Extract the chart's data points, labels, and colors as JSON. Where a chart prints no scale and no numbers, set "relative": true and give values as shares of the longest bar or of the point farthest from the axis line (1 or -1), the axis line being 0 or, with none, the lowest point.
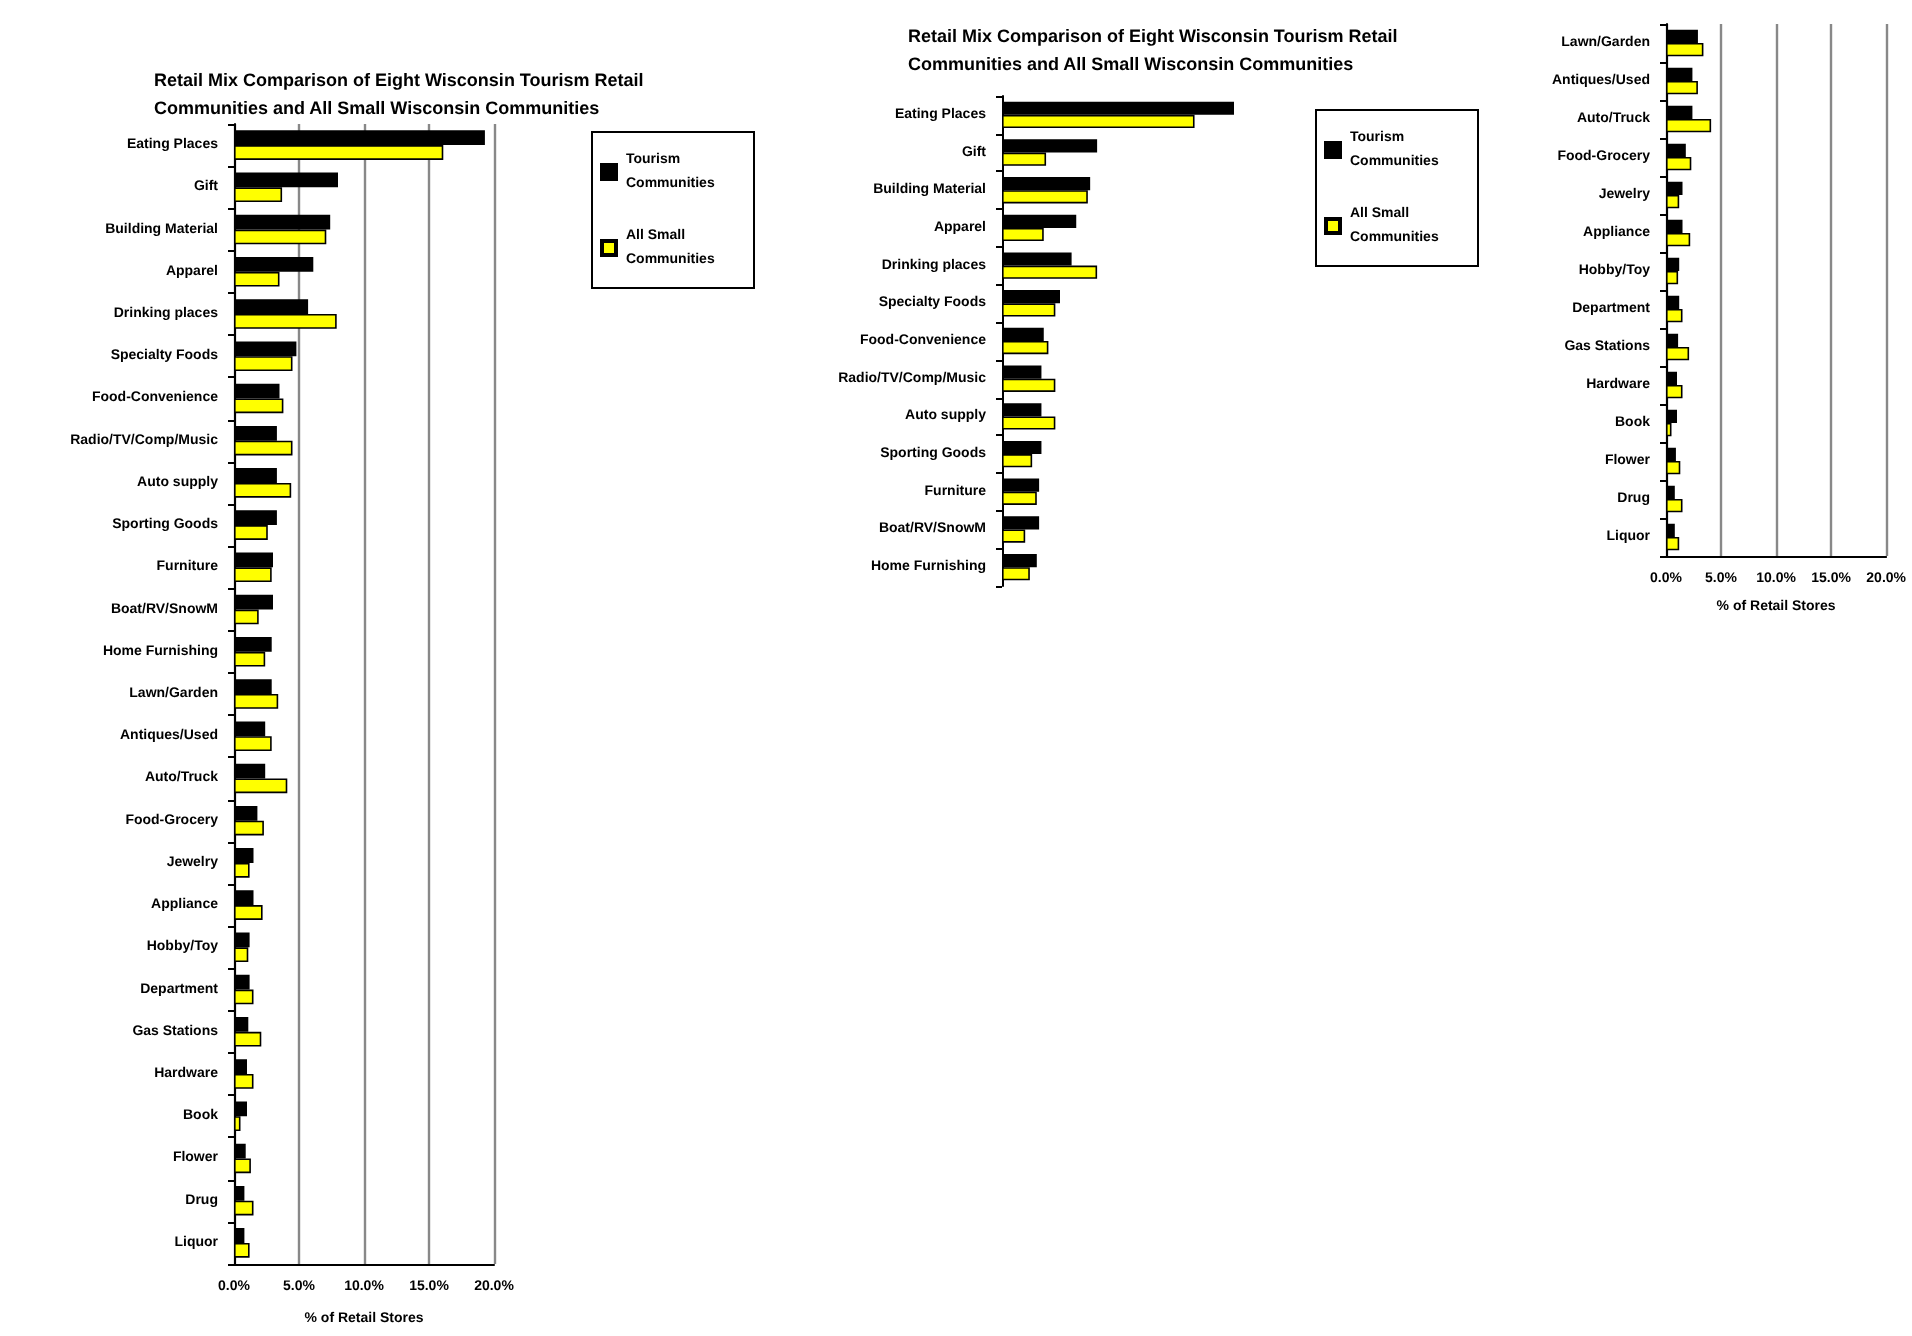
{
  "chart_data": [
    {
      "type": "bar",
      "orientation": "horizontal",
      "title": "Retail Mix Comparison of Eight Wisconsin Tourism Retail Communities and All Small Wisconsin Communities",
      "xlabel": "% of Retail Stores",
      "categories": [
        "Eating Places",
        "Gift",
        "Building Material",
        "Apparel",
        "Drinking places",
        "Specialty Foods",
        "Food-Convenience",
        "Radio/TV/Comp/Music",
        "Auto supply",
        "Sporting Goods",
        "Furniture",
        "Boat/RV/SnowM",
        "Home Furnishing",
        "Lawn/Garden",
        "Antiques/Used",
        "Auto/Truck",
        "Food-Grocery",
        "Jewelry",
        "Appliance",
        "Hobby/Toy",
        "Department",
        "Gas Stations",
        "Hardware",
        "Book",
        "Flower",
        "Drug",
        "Liquor"
      ],
      "series": [
        {
          "name": "Tourism Communities",
          "color": "#000000",
          "values": [
            19.3,
            8.0,
            7.4,
            6.1,
            5.7,
            4.8,
            3.5,
            3.3,
            3.3,
            3.3,
            3.0,
            3.0,
            2.9,
            2.9,
            2.4,
            2.4,
            1.8,
            1.5,
            1.5,
            1.2,
            1.2,
            1.1,
            1.0,
            1.0,
            0.9,
            0.8,
            0.8
          ]
        },
        {
          "name": "All Small Communities",
          "color": "#ffff00",
          "values": [
            16.1,
            3.7,
            7.1,
            3.5,
            7.9,
            4.5,
            3.8,
            4.5,
            4.4,
            2.6,
            2.9,
            1.9,
            2.4,
            3.4,
            2.9,
            4.1,
            2.3,
            1.2,
            2.2,
            1.1,
            1.5,
            2.1,
            1.5,
            0.5,
            1.3,
            1.5,
            1.2
          ]
        }
      ],
      "xlim": [
        0,
        20
      ],
      "xticks": [
        {
          "value": 0,
          "label": "0.0%"
        },
        {
          "value": 5,
          "label": "5.0%"
        },
        {
          "value": 10,
          "label": "10.0%"
        },
        {
          "value": 15,
          "label": "15.0%"
        },
        {
          "value": 20,
          "label": "20.0%"
        }
      ],
      "grid": "x",
      "legend": "top right"
    },
    {
      "type": "bar",
      "orientation": "horizontal",
      "title": "Retail Mix Comparison of Eight Wisconsin Tourism Retail Communities and All Small Wisconsin Communities",
      "categories": [
        "Eating Places",
        "Gift",
        "Building Material",
        "Apparel",
        "Drinking places",
        "Specialty Foods",
        "Food-Convenience",
        "Radio/TV/Comp/Music",
        "Auto supply",
        "Sporting Goods",
        "Furniture",
        "Boat/RV/SnowM",
        "Home Furnishing"
      ],
      "series": [
        {
          "name": "Tourism Communities",
          "color": "#000000",
          "values": [
            1,
            0.41,
            0.38,
            0.32,
            0.3,
            0.25,
            0.18,
            0.17,
            0.17,
            0.17,
            0.16,
            0.16,
            0.15
          ]
        },
        {
          "name": "All Small Communities",
          "color": "#ffff00",
          "values": [
            0.83,
            0.19,
            0.37,
            0.18,
            0.41,
            0.23,
            0.2,
            0.23,
            0.23,
            0.13,
            0.15,
            0.1,
            0.12
          ]
        }
      ],
      "relative": true,
      "legend": "top right"
    },
    {
      "type": "bar",
      "orientation": "horizontal",
      "xlabel": "% of Retail Stores",
      "categories": [
        "Lawn/Garden",
        "Antiques/Used",
        "Auto/Truck",
        "Food-Grocery",
        "Jewelry",
        "Appliance",
        "Hobby/Toy",
        "Department",
        "Gas Stations",
        "Hardware",
        "Book",
        "Flower",
        "Drug",
        "Liquor"
      ],
      "series": [
        {
          "color": "#000000",
          "values": [
            2.9,
            2.4,
            2.4,
            1.8,
            1.5,
            1.5,
            1.2,
            1.2,
            1.1,
            1.0,
            1.0,
            0.9,
            0.8,
            0.8
          ]
        },
        {
          "color": "#ffff00",
          "values": [
            3.4,
            2.9,
            4.1,
            2.3,
            1.2,
            2.2,
            1.1,
            1.5,
            2.1,
            1.5,
            0.5,
            1.3,
            1.5,
            1.2
          ]
        }
      ],
      "xlim": [
        0,
        20
      ],
      "xticks": [
        {
          "value": 0,
          "label": "0.0%"
        },
        {
          "value": 5,
          "label": "5.0%"
        },
        {
          "value": 10,
          "label": "10.0%"
        },
        {
          "value": 15,
          "label": "15.0%"
        },
        {
          "value": 20,
          "label": "20.0%"
        }
      ],
      "grid": "x"
    }
  ]
}
